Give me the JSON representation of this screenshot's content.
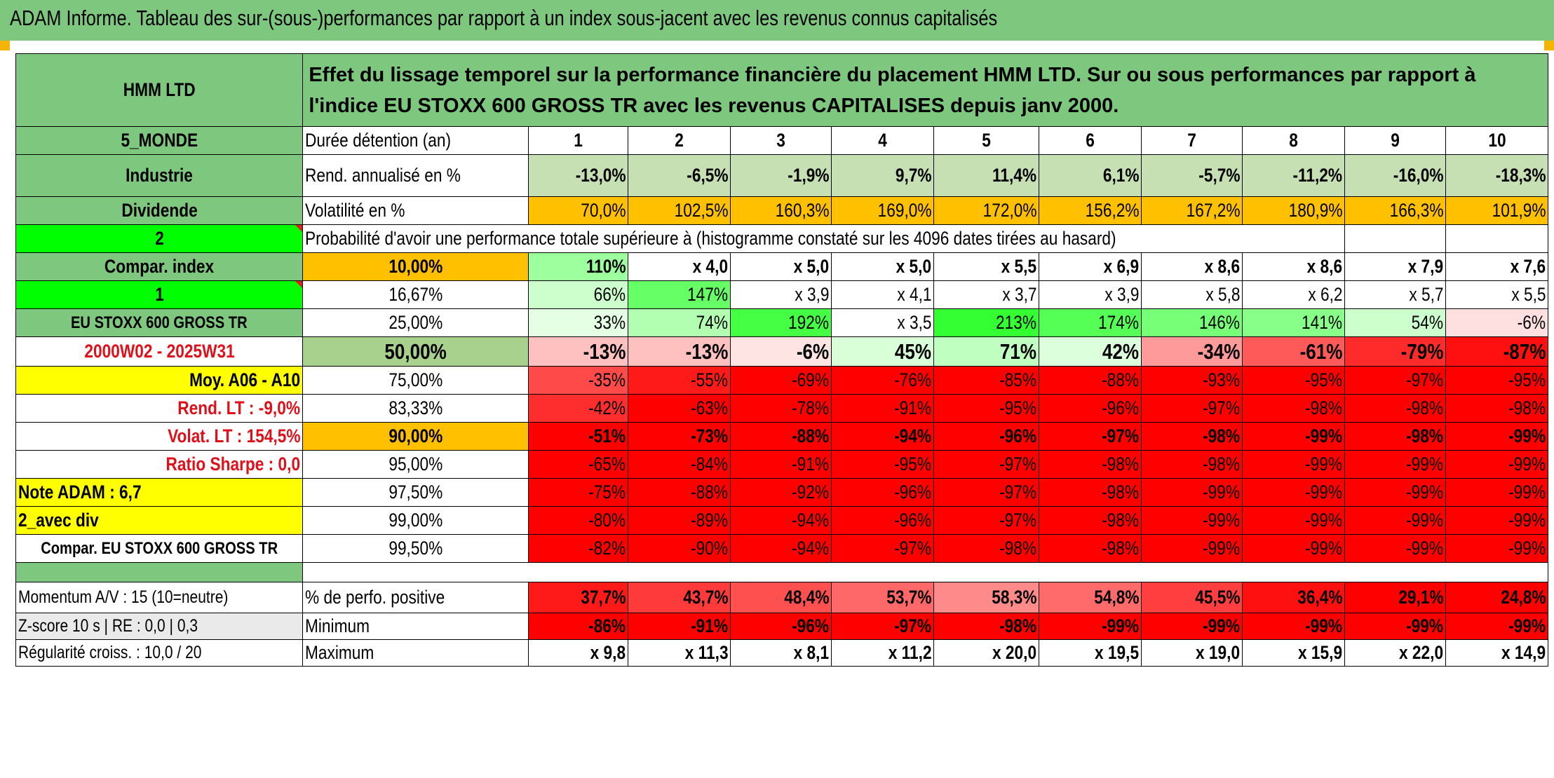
{
  "banner": {
    "title": "ADAM Informe. Tableau des sur-(sous-)performances par rapport à un index sous-jacent avec les revenus connus capitalisés"
  },
  "header": {
    "fund": "HMM LTD",
    "description": "Effet du lissage temporel sur la performance financière du placement HMM LTD. Sur ou sous performances par rapport à l'indice EU STOXX 600 GROSS TR avec les revenus CAPITALISES depuis janv 2000."
  },
  "side_labels": [
    "5_MONDE",
    "Industrie",
    "Dividende",
    "2",
    "Compar. index",
    "1",
    "EU STOXX 600 GROSS TR",
    "2000W02 - 2025W31",
    "Moy. A06 - A10",
    "Rend. LT :   -9,0%",
    "Volat. LT :   154,5%",
    "Ratio Sharpe :    0,0",
    "Note ADAM : 6,7",
    "2_avec div",
    "Compar. EU STOXX 600 GROSS TR"
  ],
  "row_titles": {
    "duration": "Durée détention (an)",
    "return": "Rend. annualisé en %",
    "volatility": "Volatilité en %"
  },
  "durations": [
    "1",
    "2",
    "3",
    "4",
    "5",
    "6",
    "7",
    "8",
    "9",
    "10"
  ],
  "annual_returns": [
    "-13,0%",
    "-6,5%",
    "-1,9%",
    "9,7%",
    "11,4%",
    "6,1%",
    "-5,7%",
    "-11,2%",
    "-16,0%",
    "-18,3%"
  ],
  "volatility": [
    "70,0%",
    "102,5%",
    "160,3%",
    "169,0%",
    "172,0%",
    "156,2%",
    "167,2%",
    "180,9%",
    "166,3%",
    "101,9%"
  ],
  "probability_title": "Probabilité d'avoir une performance totale supérieure à (histogramme constaté sur les 4096 dates tirées au hasard)",
  "quantiles": [
    {
      "p": "10,00%",
      "vals": [
        "110%",
        "x 4,0",
        "x 5,0",
        "x 5,0",
        "x 5,5",
        "x 6,9",
        "x 8,6",
        "x 8,6",
        "x 7,9",
        "x 7,6"
      ]
    },
    {
      "p": "16,67%",
      "vals": [
        "66%",
        "147%",
        "x 3,9",
        "x 4,1",
        "x 3,7",
        "x 3,9",
        "x 5,8",
        "x 6,2",
        "x 5,7",
        "x 5,5"
      ]
    },
    {
      "p": "25,00%",
      "vals": [
        "33%",
        "74%",
        "192%",
        "x 3,5",
        "213%",
        "174%",
        "146%",
        "141%",
        "54%",
        "-6%"
      ]
    },
    {
      "p": "50,00%",
      "vals": [
        "-13%",
        "-13%",
        "-6%",
        "45%",
        "71%",
        "42%",
        "-34%",
        "-61%",
        "-79%",
        "-87%"
      ]
    },
    {
      "p": "75,00%",
      "vals": [
        "-35%",
        "-55%",
        "-69%",
        "-76%",
        "-85%",
        "-88%",
        "-93%",
        "-95%",
        "-97%",
        "-95%"
      ]
    },
    {
      "p": "83,33%",
      "vals": [
        "-42%",
        "-63%",
        "-78%",
        "-91%",
        "-95%",
        "-96%",
        "-97%",
        "-98%",
        "-98%",
        "-98%"
      ]
    },
    {
      "p": "90,00%",
      "vals": [
        "-51%",
        "-73%",
        "-88%",
        "-94%",
        "-96%",
        "-97%",
        "-98%",
        "-99%",
        "-98%",
        "-99%"
      ]
    },
    {
      "p": "95,00%",
      "vals": [
        "-65%",
        "-84%",
        "-91%",
        "-95%",
        "-97%",
        "-98%",
        "-98%",
        "-99%",
        "-99%",
        "-99%"
      ]
    },
    {
      "p": "97,50%",
      "vals": [
        "-75%",
        "-88%",
        "-92%",
        "-96%",
        "-97%",
        "-98%",
        "-99%",
        "-99%",
        "-99%",
        "-99%"
      ]
    },
    {
      "p": "99,00%",
      "vals": [
        "-80%",
        "-89%",
        "-94%",
        "-96%",
        "-97%",
        "-98%",
        "-99%",
        "-99%",
        "-99%",
        "-99%"
      ]
    },
    {
      "p": "99,50%",
      "vals": [
        "-82%",
        "-90%",
        "-94%",
        "-97%",
        "-98%",
        "-98%",
        "-99%",
        "-99%",
        "-99%",
        "-99%"
      ]
    }
  ],
  "bottom": [
    {
      "left": "Momentum A/V : 15 (10=neutre)",
      "title": "% de perfo. positive",
      "vals": [
        "37,7%",
        "43,7%",
        "48,4%",
        "53,7%",
        "58,3%",
        "54,8%",
        "45,5%",
        "36,4%",
        "29,1%",
        "24,8%"
      ]
    },
    {
      "left": "Z-score 10 s | RE : 0,0 | 0,3",
      "title": "Minimum",
      "vals": [
        "-86%",
        "-91%",
        "-96%",
        "-97%",
        "-98%",
        "-99%",
        "-99%",
        "-99%",
        "-99%",
        "-99%"
      ]
    },
    {
      "left": "Régularité croiss. : 10,0 / 20",
      "title": "Maximum",
      "vals": [
        "x 9,8",
        "x 11,3",
        "x 8,1",
        "x 11,2",
        "x 20,0",
        "x 19,5",
        "x 19,0",
        "x 15,9",
        "x 22,0",
        "x 14,9"
      ]
    }
  ],
  "colors": {
    "header_green": "#7ec77e",
    "light_green": "#c6e0b4",
    "bright_green": "#00ff00",
    "yellow": "#ffff00",
    "orange": "#ffc000",
    "red": "#ff0000",
    "label_red": "#e0101a"
  },
  "cell_colors": {
    "quantiles": [
      [
        "#9dff9d",
        "#ffffff",
        "#ffffff",
        "#ffffff",
        "#ffffff",
        "#ffffff",
        "#ffffff",
        "#ffffff",
        "#ffffff",
        "#ffffff"
      ],
      [
        "#ccffcc",
        "#66ff66",
        "#ffffff",
        "#ffffff",
        "#ffffff",
        "#ffffff",
        "#ffffff",
        "#ffffff",
        "#ffffff",
        "#ffffff"
      ],
      [
        "#e4ffe4",
        "#b2ffb2",
        "#44ff44",
        "#ffffff",
        "#33ff33",
        "#55ff55",
        "#77ff77",
        "#88ff88",
        "#ccffcc",
        "#ffe0e0"
      ],
      [
        "#ffc0c0",
        "#ffc0c0",
        "#ffe4e4",
        "#d8ffd8",
        "#bfffbf",
        "#dcffdc",
        "#ff9a9a",
        "#ff5a5a",
        "#ff2a2a",
        "#ff1010"
      ],
      [
        "#ff4a4a",
        "#ff1a1a",
        "#ff0000",
        "#ff0000",
        "#ff0000",
        "#ff0000",
        "#ff0000",
        "#ff0000",
        "#ff0000",
        "#ff0000"
      ],
      [
        "#ff2e2e",
        "#ff0000",
        "#ff0000",
        "#ff0000",
        "#ff0000",
        "#ff0000",
        "#ff0000",
        "#ff0000",
        "#ff0000",
        "#ff0000"
      ],
      [
        "#ff0000",
        "#ff0000",
        "#ff0000",
        "#ff0000",
        "#ff0000",
        "#ff0000",
        "#ff0000",
        "#ff0000",
        "#ff0000",
        "#ff0000"
      ],
      [
        "#ff0000",
        "#ff0000",
        "#ff0000",
        "#ff0000",
        "#ff0000",
        "#ff0000",
        "#ff0000",
        "#ff0000",
        "#ff0000",
        "#ff0000"
      ],
      [
        "#ff0000",
        "#ff0000",
        "#ff0000",
        "#ff0000",
        "#ff0000",
        "#ff0000",
        "#ff0000",
        "#ff0000",
        "#ff0000",
        "#ff0000"
      ],
      [
        "#ff0000",
        "#ff0000",
        "#ff0000",
        "#ff0000",
        "#ff0000",
        "#ff0000",
        "#ff0000",
        "#ff0000",
        "#ff0000",
        "#ff0000"
      ],
      [
        "#ff0000",
        "#ff0000",
        "#ff0000",
        "#ff0000",
        "#ff0000",
        "#ff0000",
        "#ff0000",
        "#ff0000",
        "#ff0000",
        "#ff0000"
      ]
    ],
    "positive": [
      "#ff1a1a",
      "#ff3a3a",
      "#ff5050",
      "#ff6868",
      "#ff8a8a",
      "#ff6a6a",
      "#ff3f3f",
      "#ff1010",
      "#ff0000",
      "#ff0000"
    ],
    "minimum": [
      "#ff0000",
      "#ff0000",
      "#ff0000",
      "#ff0000",
      "#ff0000",
      "#ff0000",
      "#ff0000",
      "#ff0000",
      "#ff0000",
      "#ff0000"
    ]
  }
}
